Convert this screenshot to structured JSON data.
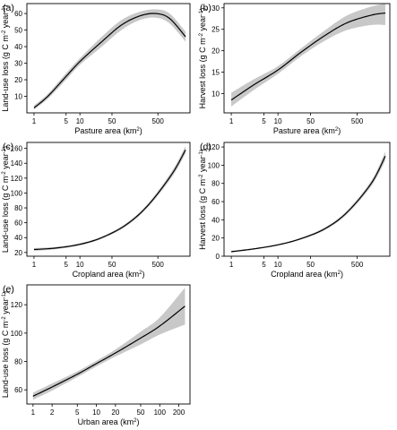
{
  "chart_data": [
    {
      "type": "line",
      "panel_label": "(a)",
      "xlabel": "Pasture area (km",
      "xlabel_sup": "2",
      "ylabel": "Land-use loss (g C m",
      "ylabel_sup1": "-2",
      "ylabel_mid": " year",
      "ylabel_sup2": "-1",
      "x_scale": "log",
      "xlim": [
        0.7,
        2500
      ],
      "ylim": [
        0,
        66
      ],
      "x_ticks": [
        1,
        5,
        10,
        50,
        500
      ],
      "y_ticks": [
        10,
        20,
        30,
        40,
        50,
        60
      ],
      "grid": false,
      "series": [
        {
          "x": [
            1,
            2,
            5,
            10,
            30,
            80,
            200,
            450,
            900,
            2000
          ],
          "y": [
            3,
            10,
            22,
            31,
            43,
            53,
            58.5,
            60,
            57,
            46
          ],
          "lower": [
            2,
            8.5,
            20,
            29,
            40,
            50,
            56,
            57.5,
            54,
            43
          ],
          "upper": [
            4.5,
            11.5,
            24,
            33,
            46,
            56,
            61,
            62.5,
            60,
            49
          ]
        }
      ]
    },
    {
      "type": "line",
      "panel_label": "(b)",
      "xlabel": "Pasture area (km",
      "xlabel_sup": "2",
      "ylabel": "Harvest loss (g C m",
      "ylabel_sup1": "-2",
      "ylabel_mid": " year",
      "ylabel_sup2": "-1",
      "x_scale": "log",
      "xlim": [
        0.7,
        2500
      ],
      "ylim": [
        5.5,
        31
      ],
      "x_ticks": [
        1,
        5,
        10,
        50,
        500
      ],
      "y_ticks": [
        10,
        15,
        20,
        25,
        30
      ],
      "grid": false,
      "series": [
        {
          "x": [
            1,
            3,
            10,
            30,
            100,
            300,
            1000,
            2000
          ],
          "y": [
            8.5,
            12,
            15.5,
            19.5,
            23.5,
            26.5,
            28.3,
            28.8
          ],
          "lower": [
            7,
            10.8,
            14.6,
            18.6,
            22.3,
            24.8,
            26,
            26
          ],
          "upper": [
            10.2,
            13.3,
            16.4,
            20.4,
            24.7,
            28.2,
            30.3,
            31
          ]
        }
      ]
    },
    {
      "type": "line",
      "panel_label": "(c)",
      "xlabel": "Cropland area (km",
      "xlabel_sup": "2",
      "ylabel": "Land-use loss (g C m",
      "ylabel_sup1": "-2",
      "ylabel_mid": " year",
      "ylabel_sup2": "-1",
      "x_scale": "log",
      "xlim": [
        0.7,
        2500
      ],
      "ylim": [
        15,
        168
      ],
      "x_ticks": [
        1,
        5,
        10,
        50,
        500
      ],
      "y_ticks": [
        20,
        40,
        60,
        80,
        100,
        120,
        140,
        160
      ],
      "grid": false,
      "series": [
        {
          "x": [
            1,
            3,
            10,
            30,
            100,
            300,
            1000,
            2000
          ],
          "y": [
            24,
            26,
            31,
            40,
            57,
            83,
            125,
            158
          ],
          "lower": [
            22,
            24.5,
            29.5,
            38.5,
            55,
            80.5,
            121,
            153
          ],
          "upper": [
            26,
            27.5,
            32.5,
            41.5,
            59,
            85.5,
            129,
            163
          ]
        }
      ]
    },
    {
      "type": "line",
      "panel_label": "(d)",
      "xlabel": "Cropland area (km",
      "xlabel_sup": "2",
      "ylabel": "Harvest loss (g C m",
      "ylabel_sup1": "-2",
      "ylabel_mid": " year",
      "ylabel_sup2": "-1",
      "x_scale": "log",
      "xlim": [
        0.7,
        2500
      ],
      "ylim": [
        0,
        125
      ],
      "x_ticks": [
        1,
        5,
        10,
        50,
        500
      ],
      "y_ticks": [
        0,
        20,
        40,
        60,
        80,
        100,
        120
      ],
      "grid": false,
      "series": [
        {
          "x": [
            1,
            3,
            10,
            30,
            100,
            300,
            1000,
            2000
          ],
          "y": [
            5,
            8,
            12.5,
            19,
            30,
            48,
            80,
            110
          ],
          "lower": [
            4,
            7.2,
            11.7,
            18,
            28.5,
            46,
            77,
            105
          ],
          "upper": [
            6,
            8.8,
            13.3,
            20,
            31.5,
            50,
            83,
            115
          ]
        }
      ]
    },
    {
      "type": "line",
      "panel_label": "(e)",
      "xlabel": "Urban area (km",
      "xlabel_sup": "2",
      "ylabel": "Land-use loss (g C m",
      "ylabel_sup1": "-2",
      "ylabel_mid": " year",
      "ylabel_sup2": "-1",
      "x_scale": "log",
      "xlim": [
        0.8,
        300
      ],
      "ylim": [
        50,
        134
      ],
      "x_ticks": [
        1,
        2,
        5,
        10,
        20,
        50,
        100,
        200
      ],
      "y_ticks": [
        60,
        80,
        100,
        120
      ],
      "grid": false,
      "series": [
        {
          "x": [
            1,
            2,
            5,
            10,
            20,
            50,
            100,
            250
          ],
          "y": [
            55.5,
            62,
            71,
            78.5,
            86,
            96.5,
            105,
            119
          ],
          "lower": [
            53,
            59.5,
            69,
            76.5,
            83.5,
            92,
            99,
            106
          ],
          "upper": [
            58,
            64.5,
            73,
            80.5,
            88.5,
            101,
            111,
            132
          ]
        }
      ]
    }
  ]
}
